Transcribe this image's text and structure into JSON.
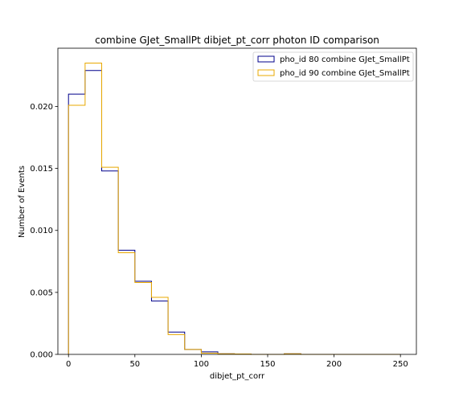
{
  "chart_data": {
    "type": "step-histogram",
    "title": "combine GJet_SmallPt dibjet_pt_corr photon ID comparison",
    "xlabel": "dibjet_pt_corr",
    "ylabel": "Number of Events",
    "xlim": [
      -8,
      262
    ],
    "ylim": [
      0,
      0.0247
    ],
    "x_ticks": [
      0,
      50,
      100,
      150,
      200,
      250
    ],
    "x_tick_labels": [
      "0",
      "50",
      "100",
      "150",
      "200",
      "250"
    ],
    "y_ticks": [
      0.0,
      0.005,
      0.01,
      0.015,
      0.02
    ],
    "y_tick_labels": [
      "0.000",
      "0.005",
      "0.010",
      "0.015",
      "0.020"
    ],
    "grid": false,
    "legend_position": "upper right",
    "bin_edges": [
      0,
      12.5,
      25,
      37.5,
      50,
      62.5,
      75,
      87.5,
      100,
      112.5,
      125,
      137.5,
      150,
      162.5,
      175,
      187.5,
      200,
      212.5,
      225,
      237.5,
      250
    ],
    "series": [
      {
        "name": "pho_id 80 combine GJet_SmallPt",
        "color": "#00008b",
        "values": [
          0.021,
          0.0229,
          0.0148,
          0.0084,
          0.0059,
          0.0043,
          0.0018,
          0.0004,
          0.0002,
          5e-05,
          3e-05,
          0,
          0,
          5e-05,
          0,
          0,
          0,
          0,
          0,
          0
        ]
      },
      {
        "name": "pho_id 90 combine GJet_SmallPt",
        "color": "#e8a800",
        "values": [
          0.0201,
          0.0235,
          0.0151,
          0.0082,
          0.0058,
          0.0046,
          0.0016,
          0.0004,
          0.0001,
          5e-05,
          3e-05,
          0,
          0,
          5e-05,
          0,
          0,
          0,
          0,
          0,
          0
        ]
      }
    ]
  }
}
